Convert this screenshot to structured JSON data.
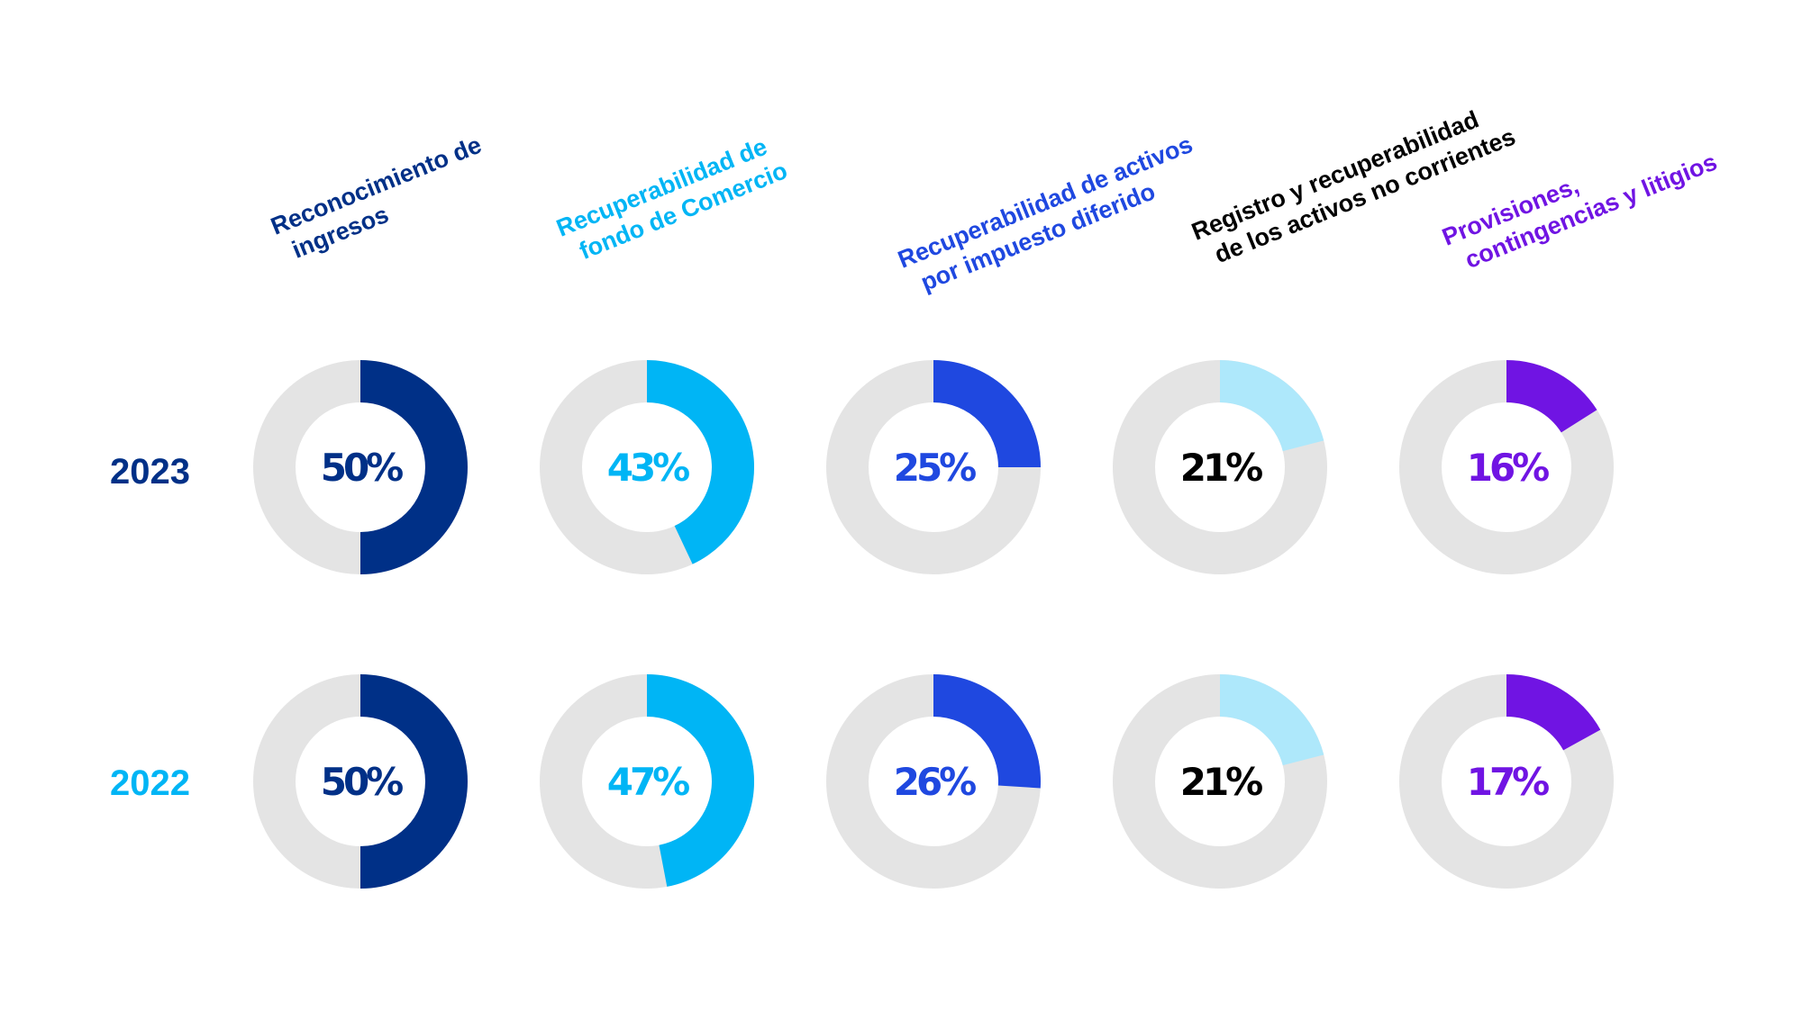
{
  "chart_data": {
    "type": "donut",
    "track_color": "#e4e4e4",
    "categories": [
      {
        "lines": [
          "Reconocimiento de",
          "ingresos"
        ],
        "color": "#003087",
        "text_color": "#003087"
      },
      {
        "lines": [
          "Recuperabilidad de",
          "fondo de Comercio"
        ],
        "color": "#00b5f5",
        "text_color": "#00b5f5"
      },
      {
        "lines": [
          "Recuperabilidad de activos",
          "por impuesto diferido"
        ],
        "color": "#1f48e0",
        "text_color": "#1f48e0"
      },
      {
        "lines": [
          "Registro y recuperabilidad",
          "de los  activos no corrientes"
        ],
        "color": "#aee8fb",
        "text_color": "#000000"
      },
      {
        "lines": [
          "Provisiones,",
          "contingencias y litigios"
        ],
        "color": "#7014e3",
        "text_color": "#7014e3"
      }
    ],
    "series": [
      {
        "year": "2023",
        "year_color": "#003087",
        "values": [
          50,
          43,
          25,
          21,
          16
        ],
        "labels": [
          "50%",
          "43%",
          "25%",
          "21%",
          "16%"
        ]
      },
      {
        "year": "2022",
        "year_color": "#00b5f5",
        "values": [
          50,
          47,
          26,
          21,
          17
        ],
        "labels": [
          "50%",
          "47%",
          "26%",
          "21%",
          "17%"
        ]
      }
    ]
  }
}
